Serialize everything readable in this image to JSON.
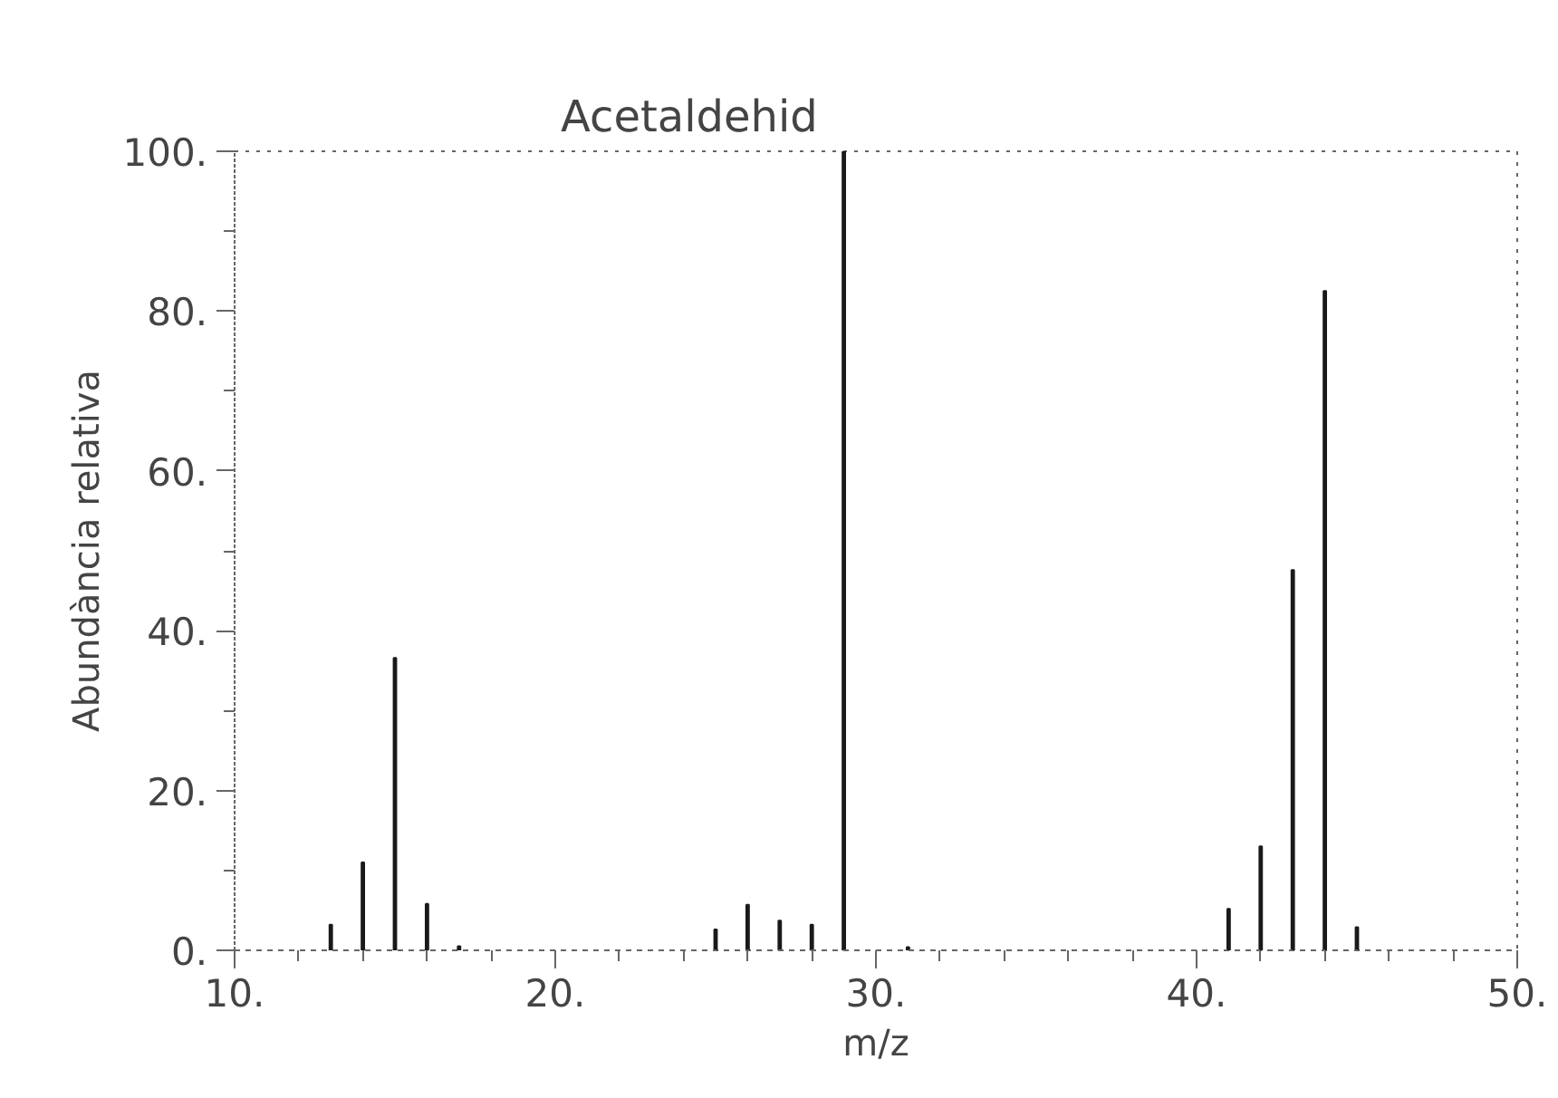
{
  "chart_data": {
    "type": "bar",
    "title": "Acetaldehid",
    "xlabel": "m/z",
    "ylabel": "Abundància relativa",
    "x": [
      13,
      14,
      15,
      16,
      17,
      25,
      26,
      27,
      28,
      29,
      31,
      41,
      42,
      43,
      44,
      45
    ],
    "values": [
      3.2,
      11,
      36.6,
      5.8,
      0.5,
      2.6,
      5.7,
      3.7,
      3.2,
      100,
      0.4,
      5.2,
      13,
      47.6,
      82.5,
      2.9
    ],
    "color": "#1a1a1a",
    "xlim": [
      10,
      50
    ],
    "ylim": [
      0,
      100
    ],
    "xticks": [
      {
        "value": 10,
        "label": "10."
      },
      {
        "value": 20,
        "label": "20."
      },
      {
        "value": 30,
        "label": "30."
      },
      {
        "value": 40,
        "label": "40."
      },
      {
        "value": 50,
        "label": "50."
      }
    ],
    "yticks": [
      {
        "value": 0,
        "label": "0."
      },
      {
        "value": 20,
        "label": "20."
      },
      {
        "value": 40,
        "label": "40."
      },
      {
        "value": 60,
        "label": "60."
      },
      {
        "value": 80,
        "label": "80."
      },
      {
        "value": 100,
        "label": "100."
      }
    ],
    "grid": false
  }
}
